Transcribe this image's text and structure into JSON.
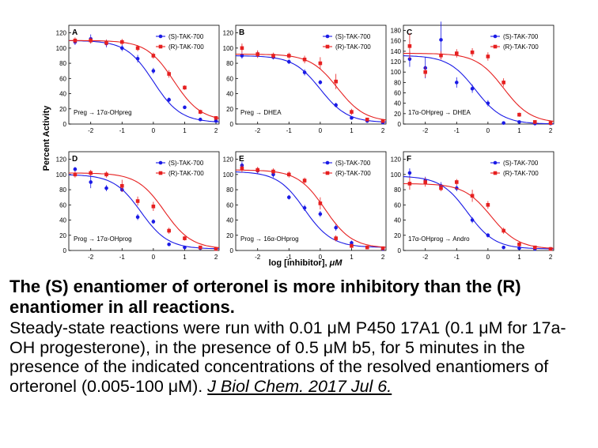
{
  "figure": {
    "ylabel": "Percent Activity",
    "xlabel": "log [inhibitor], μM",
    "colors": {
      "S": "#1a1ae6",
      "R": "#e62020"
    }
  },
  "chart_data": [
    {
      "type": "scatter",
      "panel": "A",
      "reaction": "Preg → 17α-OHpreg",
      "xlim": [
        -2.7,
        2.1
      ],
      "ylim": [
        0,
        130
      ],
      "xticks": [
        -2,
        -1,
        0,
        1,
        2
      ],
      "yticks": [
        0,
        20,
        40,
        60,
        80,
        100,
        120
      ],
      "legend": "top-right",
      "series": [
        {
          "name": "(S)-TAK-700",
          "x": [
            -2.5,
            -2.0,
            -1.5,
            -1.0,
            -0.5,
            0.0,
            0.5,
            1.0,
            1.5,
            2.0
          ],
          "y": [
            108,
            112,
            106,
            100,
            86,
            70,
            32,
            22,
            6,
            4
          ],
          "err": [
            4,
            6,
            5,
            4,
            5,
            4,
            3,
            2,
            2,
            1
          ],
          "fit": {
            "top": 110,
            "bottom": 2,
            "logic50": 0.0,
            "hill": 1.0
          }
        },
        {
          "name": "(R)-TAK-700",
          "x": [
            -2.5,
            -2.0,
            -1.5,
            -1.0,
            -0.5,
            0.0,
            0.5,
            1.0,
            1.5,
            2.0
          ],
          "y": [
            110,
            110,
            107,
            108,
            100,
            90,
            66,
            48,
            16,
            8
          ],
          "err": [
            4,
            4,
            4,
            4,
            4,
            4,
            5,
            3,
            3,
            2
          ],
          "fit": {
            "top": 110,
            "bottom": 4,
            "logic50": 0.65,
            "hill": 1.0
          }
        }
      ]
    },
    {
      "type": "scatter",
      "panel": "B",
      "reaction": "Preg → DHEA",
      "xlim": [
        -2.7,
        2.1
      ],
      "ylim": [
        0,
        130
      ],
      "xticks": [
        -2,
        -1,
        0,
        1,
        2
      ],
      "yticks": [
        0,
        20,
        40,
        60,
        80,
        100,
        120
      ],
      "legend": "top-right",
      "series": [
        {
          "name": "(S)-TAK-700",
          "x": [
            -2.5,
            -2.0,
            -1.5,
            -1.0,
            -0.5,
            0.0,
            0.5,
            1.0,
            1.5,
            2.0
          ],
          "y": [
            90,
            92,
            88,
            82,
            68,
            55,
            25,
            8,
            4,
            2
          ],
          "err": [
            4,
            4,
            3,
            3,
            4,
            3,
            3,
            2,
            1,
            1
          ],
          "fit": {
            "top": 90,
            "bottom": 2,
            "logic50": 0.0,
            "hill": 1.0
          }
        },
        {
          "name": "(R)-TAK-700",
          "x": [
            -2.5,
            -2.0,
            -1.5,
            -1.0,
            -0.5,
            0.0,
            0.5,
            1.0,
            1.5,
            2.0
          ],
          "y": [
            100,
            92,
            90,
            90,
            85,
            80,
            56,
            16,
            6,
            4
          ],
          "err": [
            6,
            5,
            4,
            4,
            5,
            8,
            10,
            4,
            2,
            1
          ],
          "fit": {
            "top": 92,
            "bottom": 3,
            "logic50": 0.55,
            "hill": 1.0
          }
        }
      ]
    },
    {
      "type": "scatter",
      "panel": "C",
      "reaction": "17α-OHpreg → DHEA",
      "xlim": [
        -2.7,
        2.1
      ],
      "ylim": [
        0,
        190
      ],
      "xticks": [
        -2,
        -1,
        0,
        1,
        2
      ],
      "yticks": [
        0,
        20,
        40,
        60,
        80,
        100,
        120,
        140,
        160,
        180
      ],
      "legend": "top-right",
      "series": [
        {
          "name": "(S)-TAK-700",
          "x": [
            -2.5,
            -2.0,
            -1.5,
            -1.0,
            -0.5,
            0.0,
            0.5,
            1.0,
            1.5,
            2.0
          ],
          "y": [
            125,
            108,
            162,
            80,
            68,
            40,
            2,
            4,
            1,
            1
          ],
          "err": [
            15,
            20,
            35,
            10,
            8,
            6,
            2,
            2,
            1,
            1
          ],
          "fit": {
            "top": 132,
            "bottom": 0,
            "logic50": -0.4,
            "hill": 1.0
          }
        },
        {
          "name": "(R)-TAK-700",
          "x": [
            -2.5,
            -2.0,
            -1.5,
            -1.0,
            -0.5,
            0.0,
            0.5,
            1.0,
            1.5,
            2.0
          ],
          "y": [
            150,
            100,
            132,
            136,
            138,
            130,
            80,
            18,
            4,
            2
          ],
          "err": [
            25,
            10,
            8,
            8,
            8,
            8,
            8,
            4,
            2,
            1
          ],
          "fit": {
            "top": 136,
            "bottom": 2,
            "logic50": 0.5,
            "hill": 1.0
          }
        }
      ]
    },
    {
      "type": "scatter",
      "panel": "D",
      "reaction": "Prog → 17α-OHprog",
      "xlim": [
        -2.7,
        2.1
      ],
      "ylim": [
        0,
        130
      ],
      "xticks": [
        -2,
        -1,
        0,
        1,
        2
      ],
      "yticks": [
        0,
        20,
        40,
        60,
        80,
        100,
        120
      ],
      "legend": "top-right",
      "series": [
        {
          "name": "(S)-TAK-700",
          "x": [
            -2.5,
            -2.0,
            -1.5,
            -1.0,
            -0.5,
            0.0,
            0.5,
            1.0,
            1.5,
            2.0
          ],
          "y": [
            107,
            90,
            82,
            80,
            44,
            38,
            8,
            4,
            3,
            2
          ],
          "err": [
            3,
            8,
            4,
            3,
            4,
            3,
            2,
            1,
            1,
            1
          ],
          "fit": {
            "top": 100,
            "bottom": 2,
            "logic50": -0.4,
            "hill": 1.0
          }
        },
        {
          "name": "(R)-TAK-700",
          "x": [
            -2.5,
            -2.0,
            -1.5,
            -1.0,
            -0.5,
            0.0,
            0.5,
            1.0,
            1.5,
            2.0
          ],
          "y": [
            100,
            102,
            100,
            85,
            65,
            58,
            26,
            16,
            4,
            2
          ],
          "err": [
            4,
            4,
            4,
            8,
            6,
            6,
            4,
            3,
            2,
            1
          ],
          "fit": {
            "top": 102,
            "bottom": 2,
            "logic50": 0.35,
            "hill": 1.0
          }
        }
      ]
    },
    {
      "type": "scatter",
      "panel": "E",
      "reaction": "Prog → 16α-OHprog",
      "xlim": [
        -2.7,
        2.1
      ],
      "ylim": [
        0,
        130
      ],
      "xticks": [
        -2,
        -1,
        0,
        1,
        2
      ],
      "yticks": [
        0,
        20,
        40,
        60,
        80,
        100,
        120
      ],
      "legend": "top-right",
      "series": [
        {
          "name": "(S)-TAK-700",
          "x": [
            -2.5,
            -2.0,
            -1.5,
            -1.0,
            -0.5,
            0.0,
            0.5,
            1.0,
            1.5,
            2.0
          ],
          "y": [
            112,
            105,
            100,
            70,
            56,
            48,
            30,
            10,
            4,
            2
          ],
          "err": [
            5,
            4,
            4,
            3,
            4,
            4,
            4,
            3,
            2,
            1
          ],
          "fit": {
            "top": 104,
            "bottom": 4,
            "logic50": -0.5,
            "hill": 1.0
          }
        },
        {
          "name": "(R)-TAK-700",
          "x": [
            -2.5,
            -2.0,
            -1.5,
            -1.0,
            -0.5,
            0.0,
            0.5,
            1.0,
            1.5,
            2.0
          ],
          "y": [
            108,
            106,
            104,
            100,
            92,
            62,
            16,
            6,
            4,
            3
          ],
          "err": [
            5,
            4,
            4,
            4,
            4,
            8,
            4,
            3,
            2,
            1
          ],
          "fit": {
            "top": 106,
            "bottom": 3,
            "logic50": 0.15,
            "hill": 1.0
          }
        }
      ]
    },
    {
      "type": "scatter",
      "panel": "F",
      "reaction": "17α-OHprog → Andro",
      "xlim": [
        -2.7,
        2.1
      ],
      "ylim": [
        0,
        130
      ],
      "xticks": [
        -2,
        -1,
        0,
        1,
        2
      ],
      "yticks": [
        0,
        20,
        40,
        60,
        80,
        100,
        120
      ],
      "legend": "top-right",
      "series": [
        {
          "name": "(S)-TAK-700",
          "x": [
            -2.5,
            -2.0,
            -1.5,
            -1.0,
            -0.5,
            0.0,
            0.5,
            1.0,
            1.5,
            2.0
          ],
          "y": [
            102,
            92,
            85,
            82,
            40,
            20,
            4,
            3,
            2,
            2
          ],
          "err": [
            6,
            5,
            5,
            4,
            4,
            3,
            2,
            1,
            1,
            1
          ],
          "fit": {
            "top": 98,
            "bottom": 2,
            "logic50": -0.65,
            "hill": 1.0
          }
        },
        {
          "name": "(R)-TAK-700",
          "x": [
            -2.5,
            -2.0,
            -1.5,
            -1.0,
            -0.5,
            0.0,
            0.5,
            1.0,
            1.5,
            2.0
          ],
          "y": [
            88,
            90,
            82,
            90,
            72,
            60,
            26,
            8,
            4,
            2
          ],
          "err": [
            8,
            6,
            4,
            4,
            8,
            5,
            4,
            3,
            2,
            1
          ],
          "fit": {
            "top": 88,
            "bottom": 2,
            "logic50": 0.1,
            "hill": 1.0
          }
        }
      ]
    }
  ],
  "caption": {
    "title": "The (S) enantiomer of orteronel is more inhibitory than the (R) enantiomer in all reactions.",
    "body": "Steady-state reactions were run with 0.01 μM P450 17A1 (0.1 μM for 17a-OH progesterone), in the presence of 0.5 μM b5, for 5 minutes in the presence of the indicated concentrations of the resolved enantiomers of orteronel (0.005-100 μM). ",
    "citation": "J Biol Chem. 2017 Jul 6."
  }
}
